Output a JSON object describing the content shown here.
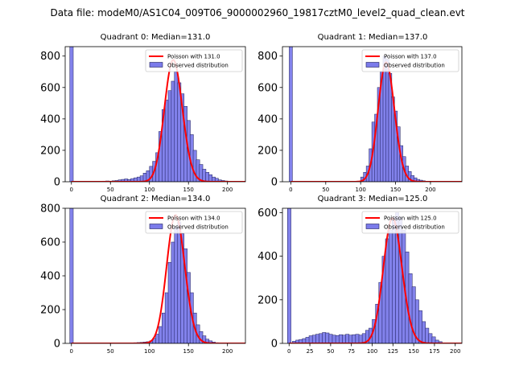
{
  "title": "Data file: modeM0/AS1C04_009T06_9000002960_19817cztM0_level2_quad_clean.evt",
  "colors": {
    "bar_fill": "#7b7bea",
    "bar_edge": "#1f1f5a",
    "poisson": "#ff0000",
    "axis": "#000000"
  },
  "chart_data": [
    {
      "type": "bar",
      "title": "Quadrant 0: Median=131.0",
      "legend": {
        "line": "Poisson with 131.0",
        "bars": "Observed distribution",
        "position": "top-right"
      },
      "xlim": [
        -8,
        223
      ],
      "ylim": [
        0,
        860
      ],
      "xticks": [
        0,
        50,
        100,
        150,
        200
      ],
      "yticks": [
        0,
        200,
        400,
        600,
        800
      ],
      "bin_width": 4.4,
      "zero_bin_value": 860,
      "bins_x": [
        36,
        40,
        44,
        48,
        52,
        56,
        60,
        64,
        68,
        72,
        76,
        80,
        84,
        88,
        92,
        96,
        100,
        104,
        108,
        112,
        116,
        120,
        124,
        128,
        132,
        136,
        140,
        144,
        148,
        152,
        156,
        160,
        164,
        168,
        172,
        176,
        180,
        184,
        188,
        192,
        196,
        200
      ],
      "bins_y": [
        3,
        4,
        5,
        4,
        6,
        8,
        12,
        15,
        18,
        14,
        20,
        25,
        30,
        38,
        55,
        70,
        98,
        130,
        185,
        320,
        460,
        520,
        580,
        640,
        700,
        630,
        560,
        480,
        390,
        300,
        200,
        140,
        110,
        80,
        60,
        45,
        30,
        22,
        12,
        8,
        5,
        3
      ],
      "poisson_mean": 131.0,
      "poisson_scale": 775
    },
    {
      "type": "bar",
      "title": "Quadrant 1: Median=137.0",
      "legend": {
        "line": "Poisson with 137.0",
        "bars": "Observed distribution",
        "position": "top-right"
      },
      "xlim": [
        -12,
        245
      ],
      "ylim": [
        0,
        860
      ],
      "xticks": [
        0,
        50,
        100,
        150,
        200
      ],
      "yticks": [
        0,
        200,
        400,
        600,
        800
      ],
      "bin_width": 4.6,
      "zero_bin_value": 860,
      "bins_x": [
        100,
        104,
        108,
        112,
        116,
        120,
        124,
        128,
        132,
        136,
        140,
        144,
        148,
        152,
        156,
        160,
        164,
        168,
        172,
        176,
        180,
        184,
        188,
        192
      ],
      "bins_y": [
        30,
        60,
        100,
        210,
        380,
        430,
        600,
        700,
        800,
        780,
        690,
        540,
        450,
        350,
        230,
        160,
        100,
        65,
        40,
        25,
        15,
        10,
        6,
        3
      ],
      "poisson_mean": 137.0,
      "poisson_scale": 760
    },
    {
      "type": "bar",
      "title": "Quadrant 2: Median=134.0",
      "legend": {
        "line": "Poisson with 134.0",
        "bars": "Observed distribution",
        "position": "top-right"
      },
      "xlim": [
        -8,
        223
      ],
      "ylim": [
        0,
        800
      ],
      "xticks": [
        0,
        50,
        100,
        150,
        200
      ],
      "yticks": [
        0,
        200,
        400,
        600,
        800
      ],
      "bin_width": 4.4,
      "zero_bin_value": 800,
      "bins_x": [
        68,
        72,
        76,
        80,
        84,
        88,
        92,
        96,
        100,
        104,
        108,
        112,
        116,
        120,
        124,
        128,
        132,
        136,
        140,
        144,
        148,
        152,
        156,
        160,
        164,
        168,
        172,
        176,
        180,
        184
      ],
      "bins_y": [
        2,
        3,
        3,
        4,
        5,
        6,
        8,
        10,
        15,
        30,
        55,
        100,
        180,
        300,
        480,
        600,
        690,
        720,
        650,
        560,
        420,
        300,
        180,
        110,
        70,
        45,
        25,
        15,
        8,
        4
      ],
      "poisson_mean": 134.0,
      "poisson_scale": 760
    },
    {
      "type": "bar",
      "title": "Quadrant 3: Median=125.0",
      "legend": {
        "line": "Poisson with 125.0",
        "bars": "Observed distribution",
        "position": "top-right"
      },
      "xlim": [
        -8,
        208
      ],
      "ylim": [
        0,
        620
      ],
      "xticks": [
        0,
        25,
        50,
        75,
        100,
        125,
        150,
        175,
        200
      ],
      "yticks": [
        0,
        200,
        400,
        600
      ],
      "bin_width": 4.2,
      "zero_bin_value": 620,
      "bins_x": [
        4,
        8,
        12,
        16,
        20,
        24,
        28,
        32,
        36,
        40,
        44,
        48,
        52,
        56,
        60,
        64,
        68,
        72,
        76,
        80,
        84,
        88,
        92,
        96,
        100,
        104,
        108,
        112,
        116,
        120,
        124,
        128,
        132,
        136,
        140,
        144,
        148,
        152,
        156,
        160,
        164,
        168,
        172,
        176,
        180
      ],
      "bins_y": [
        10,
        15,
        18,
        22,
        28,
        35,
        38,
        42,
        45,
        50,
        48,
        42,
        38,
        36,
        40,
        38,
        42,
        38,
        40,
        42,
        38,
        45,
        60,
        70,
        110,
        180,
        280,
        400,
        480,
        520,
        580,
        600,
        580,
        520,
        420,
        320,
        260,
        200,
        150,
        100,
        70,
        45,
        30,
        15,
        8
      ],
      "poisson_mean": 125.0,
      "poisson_scale": 575
    }
  ]
}
